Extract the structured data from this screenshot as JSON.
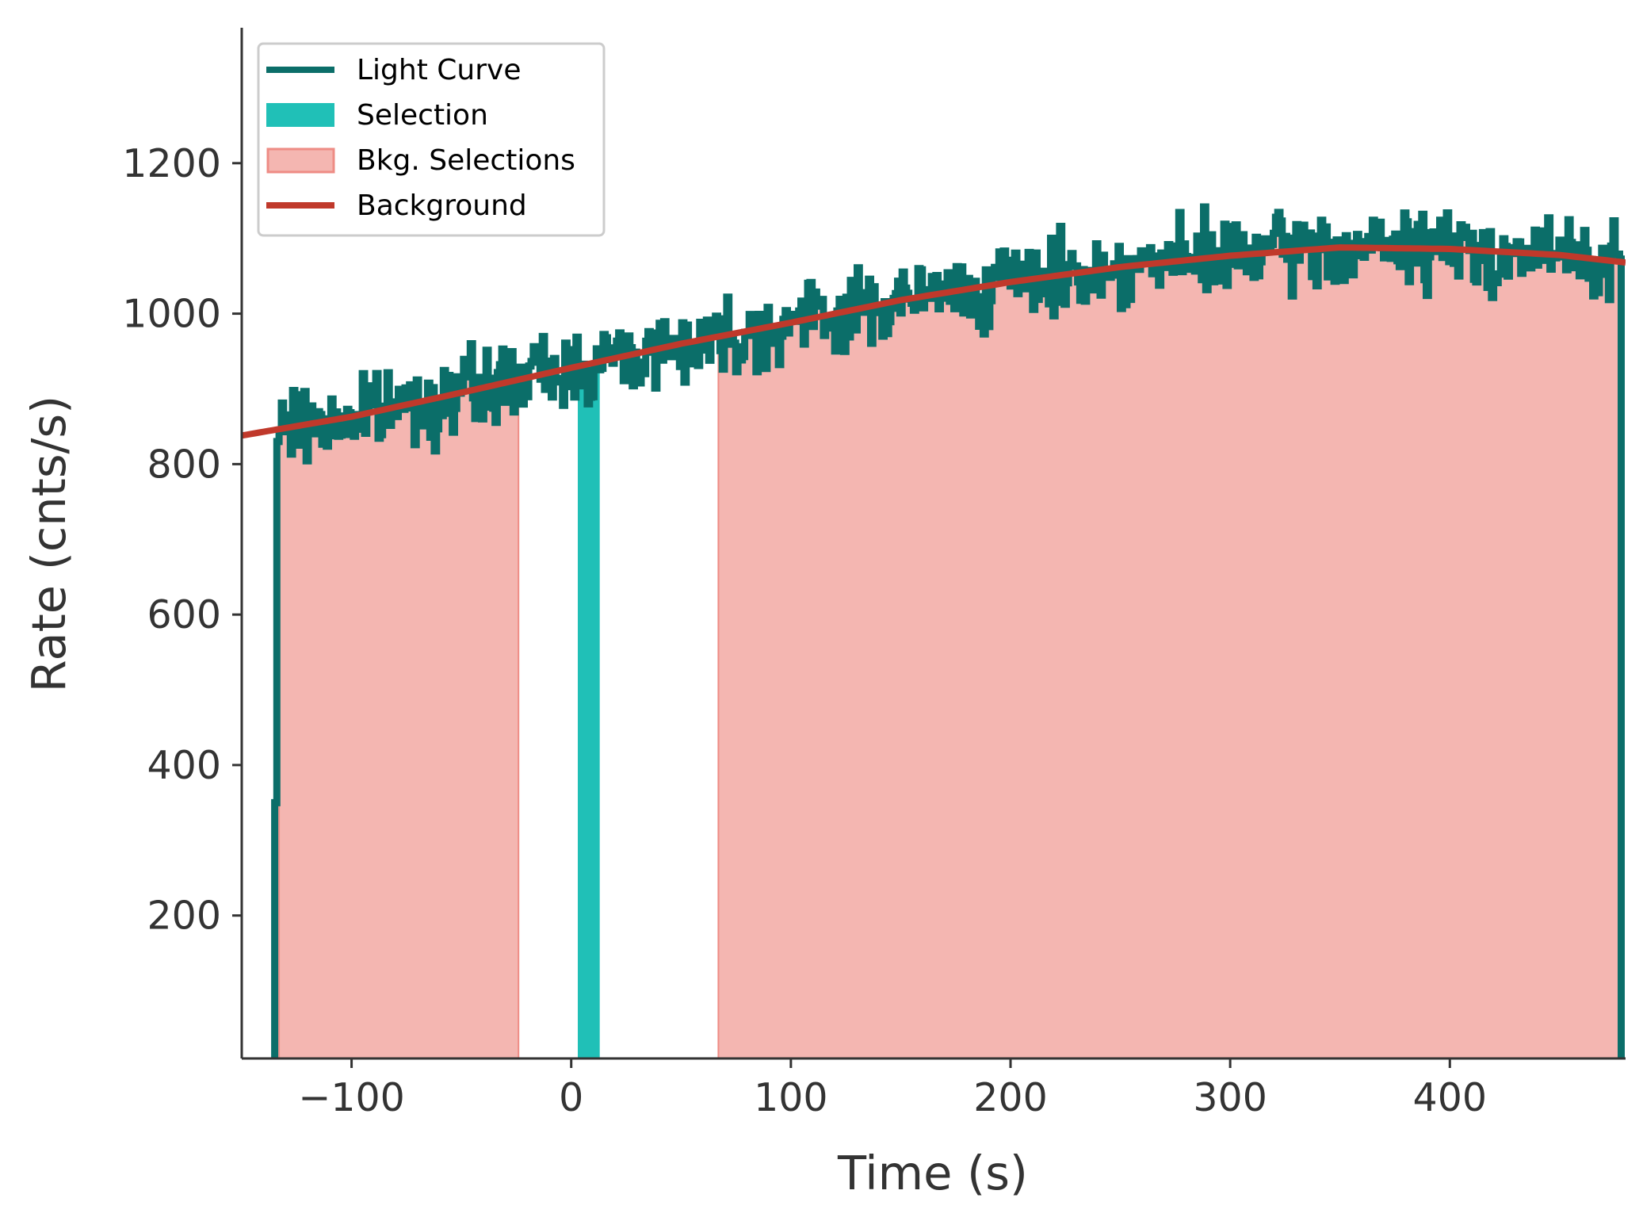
{
  "chart_data": {
    "type": "line",
    "title": "",
    "xlabel": "Time (s)",
    "ylabel": "Rate (cnts/s)",
    "xlim": [
      -150,
      480
    ],
    "ylim": [
      10,
      1380
    ],
    "xticks": [
      -100,
      0,
      100,
      200,
      300,
      400
    ],
    "xtick_labels": [
      "−100",
      "0",
      "100",
      "200",
      "300",
      "400"
    ],
    "yticks": [
      200,
      400,
      600,
      800,
      1000,
      1200
    ],
    "ytick_labels": [
      "200",
      "400",
      "600",
      "800",
      "1000",
      "1200"
    ],
    "grid": false,
    "legend_position": "top-left",
    "colors": {
      "light_curve": "#0b6e69",
      "selection": "#20c0b7",
      "bkg_fill": "#f4b6b1",
      "bkg_edge": "#ee8c85",
      "background": "#c0392b",
      "axis": "#333333"
    },
    "light_curve": {
      "x_start": -135,
      "x_end": 478,
      "bin_width": 1.024,
      "noise_amplitude": 90,
      "initial_points": [
        {
          "x": -135,
          "y": 10
        },
        {
          "x": -135,
          "y": 350
        },
        {
          "x": -134,
          "y": 830
        }
      ],
      "final_drop": {
        "x": 478,
        "y": 10
      }
    },
    "selection": {
      "start": 3,
      "end": 13
    },
    "bkg_selections": [
      {
        "start": -133,
        "end": -24
      },
      {
        "start": 67,
        "end": 478
      }
    ],
    "background": {
      "points": [
        {
          "x": -150,
          "y": 838
        },
        {
          "x": -100,
          "y": 863
        },
        {
          "x": -50,
          "y": 895
        },
        {
          "x": 0,
          "y": 928
        },
        {
          "x": 50,
          "y": 960
        },
        {
          "x": 100,
          "y": 988
        },
        {
          "x": 150,
          "y": 1018
        },
        {
          "x": 200,
          "y": 1042
        },
        {
          "x": 250,
          "y": 1062
        },
        {
          "x": 300,
          "y": 1077
        },
        {
          "x": 350,
          "y": 1088
        },
        {
          "x": 400,
          "y": 1086
        },
        {
          "x": 450,
          "y": 1078
        },
        {
          "x": 480,
          "y": 1068
        }
      ]
    },
    "legend": [
      {
        "label": "Light Curve",
        "kind": "line"
      },
      {
        "label": "Selection",
        "kind": "patch-selection"
      },
      {
        "label": "Bkg. Selections",
        "kind": "patch-bkg"
      },
      {
        "label": "Background",
        "kind": "line-bkg"
      }
    ]
  }
}
